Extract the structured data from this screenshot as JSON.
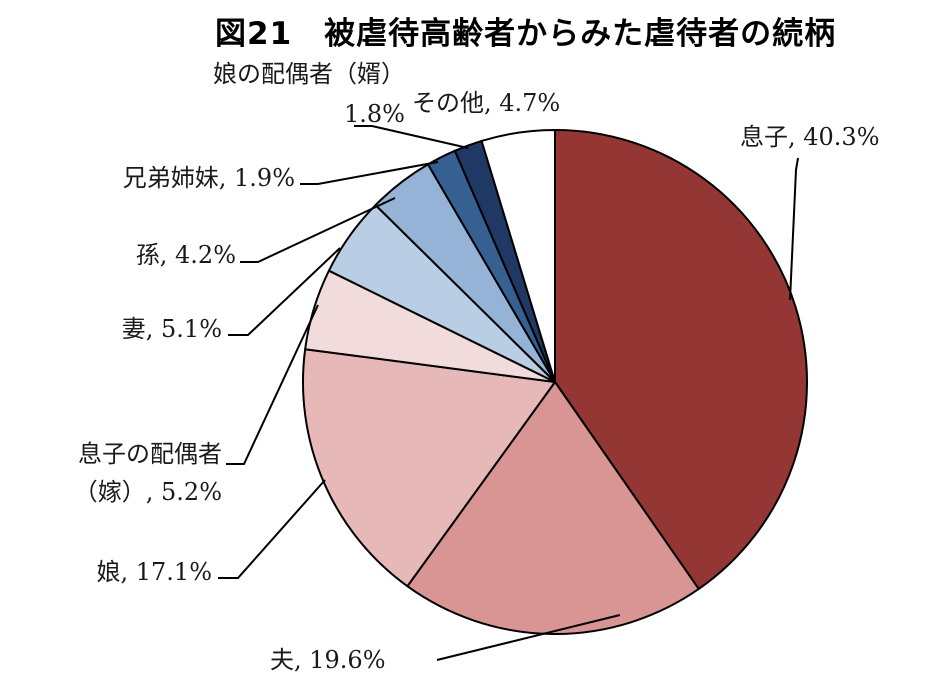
{
  "title": "図21　被虐待高齢者からみた虐待者の続柄",
  "chart_data": {
    "type": "pie",
    "title": "図21　被虐待高齢者からみた虐待者の続柄",
    "slices": [
      {
        "name": "息子",
        "value": 40.3,
        "color": "#943634",
        "label_lines": [
          "息子, 40.3%"
        ]
      },
      {
        "name": "夫",
        "value": 19.6,
        "color": "#d99594",
        "label_lines": [
          "夫, 19.6%"
        ]
      },
      {
        "name": "娘",
        "value": 17.1,
        "color": "#e6b9b8",
        "label_lines": [
          "娘, 17.1%"
        ]
      },
      {
        "name": "息子の配偶者（嫁）",
        "value": 5.2,
        "color": "#f2dcdb",
        "label_lines": [
          "息子の配偶者",
          "（嫁）, 5.2%"
        ]
      },
      {
        "name": "妻",
        "value": 5.1,
        "color": "#b9cde5",
        "label_lines": [
          "妻, 5.1%"
        ]
      },
      {
        "name": "孫",
        "value": 4.2,
        "color": "#95b3d7",
        "label_lines": [
          "孫, 4.2%"
        ]
      },
      {
        "name": "兄弟姉妹",
        "value": 1.9,
        "color": "#366092",
        "label_lines": [
          "兄弟姉妹, 1.9%"
        ]
      },
      {
        "name": "娘の配偶者（婿）",
        "value": 1.8,
        "color": "#1f3864",
        "label_lines": [
          "娘の配偶者（婿）",
          "1.8%"
        ]
      },
      {
        "name": "その他",
        "value": 4.7,
        "color": "#ffffff",
        "label_lines": [
          "その他, 4.7%"
        ]
      }
    ],
    "start": "12 o'clock",
    "direction": "clockwise"
  }
}
